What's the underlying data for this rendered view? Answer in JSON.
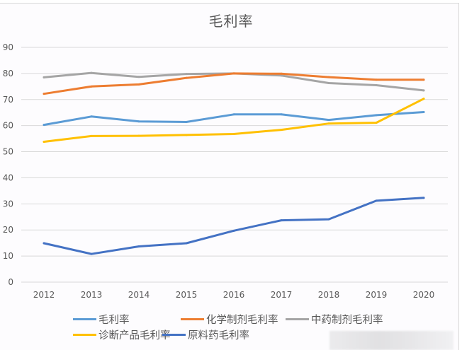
{
  "chart_data": {
    "type": "line",
    "title": "毛利率",
    "xlabel": "",
    "ylabel": "",
    "ylim": [
      0,
      90
    ],
    "yticks": [
      0,
      10,
      20,
      30,
      40,
      50,
      60,
      70,
      80,
      90
    ],
    "grid": true,
    "legend_position": "bottom",
    "categories": [
      "2012",
      "2013",
      "2014",
      "2015",
      "2016",
      "2017",
      "2018",
      "2019",
      "2020"
    ],
    "series": [
      {
        "name": "毛利率",
        "color": "#5b9bd5",
        "values": [
          60.3,
          63.5,
          61.6,
          61.4,
          64.3,
          64.3,
          62.2,
          64.0,
          65.2
        ]
      },
      {
        "name": "化学制剂毛利率",
        "color": "#ed7d31",
        "values": [
          72.2,
          75.0,
          75.8,
          78.3,
          80.0,
          79.9,
          78.6,
          77.6,
          77.6
        ]
      },
      {
        "name": "中药制剂毛利率",
        "color": "#a5a5a5",
        "values": [
          78.5,
          80.2,
          78.7,
          79.8,
          80.0,
          79.2,
          76.3,
          75.5,
          73.5
        ]
      },
      {
        "name": "诊断产品毛利率",
        "color": "#ffc000",
        "values": [
          53.8,
          56.0,
          56.1,
          56.4,
          56.8,
          58.4,
          60.8,
          61.1,
          70.3
        ]
      },
      {
        "name": "原料药毛利率",
        "color": "#4472c4",
        "values": [
          14.9,
          10.8,
          13.7,
          14.9,
          19.7,
          23.7,
          24.1,
          31.2,
          32.3
        ]
      }
    ]
  }
}
